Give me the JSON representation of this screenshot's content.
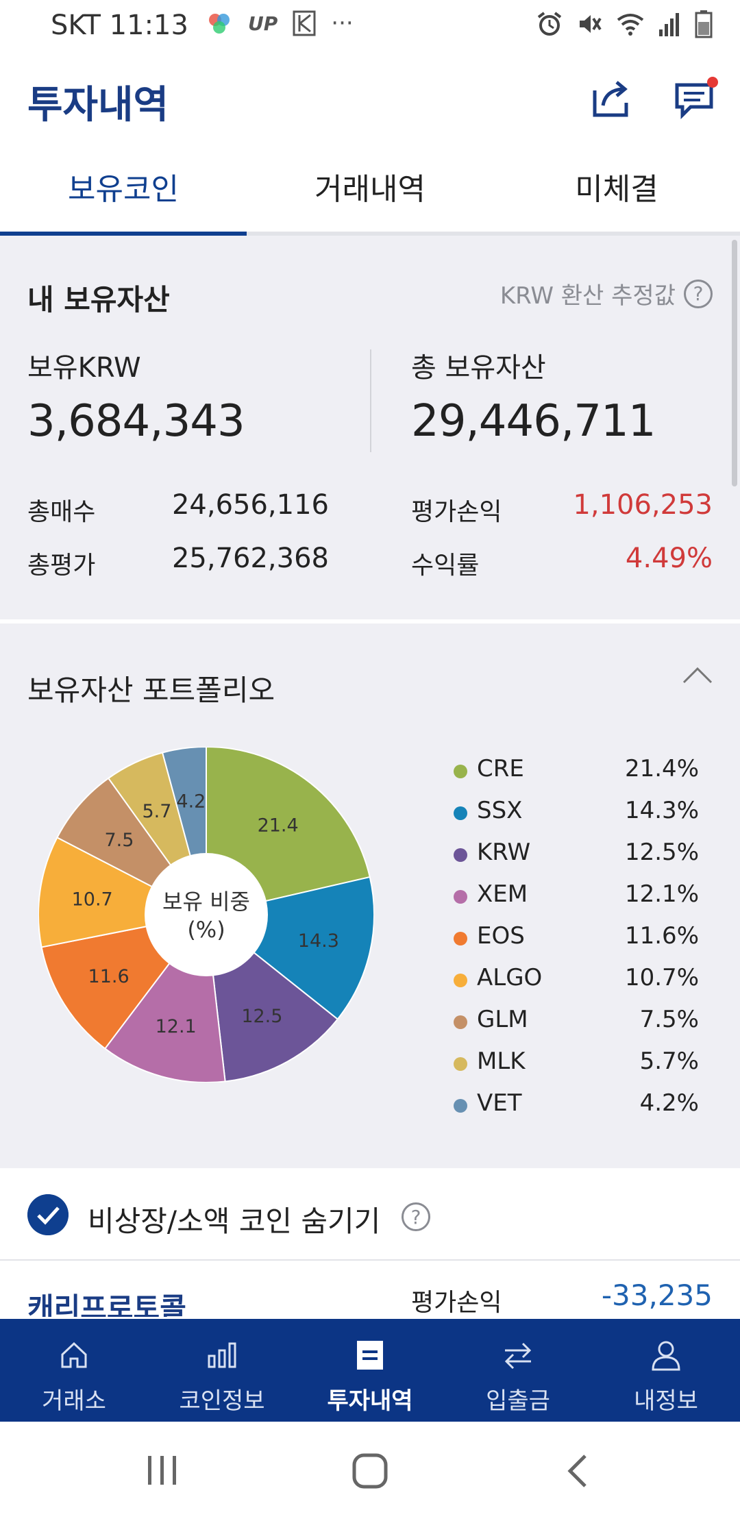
{
  "status_bar": {
    "carrier_time": "SKT 11:13",
    "notif_up": "UP",
    "notif_more": "···"
  },
  "header": {
    "title": "투자내역",
    "share_icon": "share-icon",
    "chat_icon": "chat-icon",
    "accent": "#1a3c84",
    "badge_color": "#e53935"
  },
  "tabs": [
    {
      "label": "보유코인",
      "active": true
    },
    {
      "label": "거래내역",
      "active": false
    },
    {
      "label": "미체결",
      "active": false
    }
  ],
  "assets": {
    "title": "내 보유자산",
    "krw_note": "KRW 환산 추정값",
    "holding_krw_label": "보유KRW",
    "holding_krw_value": "3,684,343",
    "total_assets_label": "총 보유자산",
    "total_assets_value": "29,446,711",
    "buy_total_label": "총매수",
    "buy_total_value": "24,656,116",
    "eval_total_label": "총평가",
    "eval_total_value": "25,762,368",
    "pnl_label": "평가손익",
    "pnl_value": "1,106,253",
    "return_label": "수익률",
    "return_value": "4.49%"
  },
  "portfolio": {
    "title": "보유자산 포트폴리오",
    "center_label_1": "보유 비중",
    "center_label_2": "(%)"
  },
  "chart_data": {
    "type": "pie",
    "title": "",
    "categories": [
      "CRE",
      "SSX",
      "KRW",
      "XEM",
      "EOS",
      "ALGO",
      "GLM",
      "MLK",
      "VET"
    ],
    "values": [
      21.4,
      14.3,
      12.5,
      12.1,
      11.6,
      10.7,
      7.5,
      5.7,
      4.2
    ],
    "slice_labels": [
      "21.4",
      "14.3",
      "12.5",
      "12.1",
      "11.6",
      "10.7",
      "7.5",
      "5.7",
      "4.2"
    ],
    "legend_pct": [
      "21.4%",
      "14.3%",
      "12.5%",
      "12.1%",
      "11.6%",
      "10.7%",
      "7.5%",
      "5.7%",
      "4.2%"
    ],
    "colors": [
      "#98b34c",
      "#1583b8",
      "#6c5598",
      "#b56ea8",
      "#f07a30",
      "#f7ae3a",
      "#c49067",
      "#d6b95e",
      "#6790b2"
    ],
    "legend_placement": "right"
  },
  "hide_small": {
    "label": "비상장/소액 코인 숨기기",
    "checked": true
  },
  "coin_row": {
    "name": "캐리프로토콜",
    "pnl_label": "평가손익",
    "pnl_value": "-33,235"
  },
  "bottom_nav": [
    {
      "label": "거래소",
      "icon": "home-icon",
      "active": false
    },
    {
      "label": "코인정보",
      "icon": "bar-chart-icon",
      "active": false
    },
    {
      "label": "투자내역",
      "icon": "list-icon",
      "active": true
    },
    {
      "label": "입출금",
      "icon": "transfer-icon",
      "active": false
    },
    {
      "label": "내정보",
      "icon": "user-icon",
      "active": false
    }
  ]
}
